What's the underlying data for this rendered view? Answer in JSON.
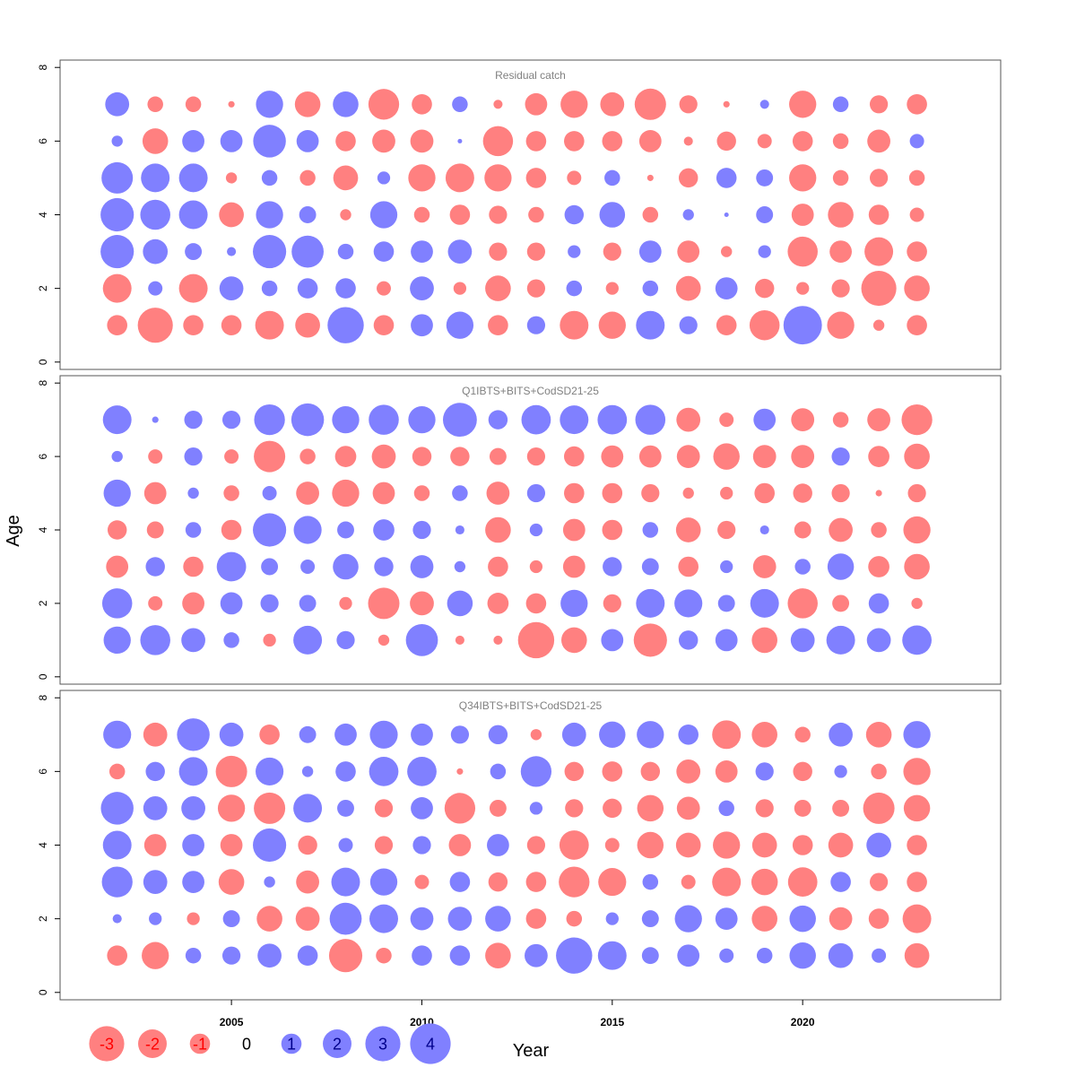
{
  "chart_data": {
    "type": "scatter",
    "subtype": "bubble",
    "xlabel": "Year",
    "ylabel": "Age",
    "x_ticks": [
      2005,
      2010,
      2015,
      2020
    ],
    "x_ticks_labels": [
      "2005",
      "2010",
      "2015",
      "2020"
    ],
    "xlim": [
      2000.5,
      2025.2
    ],
    "y_ticks": [
      0,
      2,
      4,
      6,
      8
    ],
    "y_ticks_labels": [
      "0",
      "2",
      "4",
      "6",
      "8"
    ],
    "ylim": [
      -0.2,
      8.2
    ],
    "years": [
      2002,
      2003,
      2004,
      2005,
      2006,
      2007,
      2008,
      2009,
      2010,
      2011,
      2012,
      2013,
      2014,
      2015,
      2016,
      2017,
      2018,
      2019,
      2020,
      2021,
      2022,
      2023
    ],
    "ages": [
      1,
      2,
      3,
      4,
      5,
      6,
      7
    ],
    "colors": {
      "negative": "#ff8080",
      "positive": "#8080ff"
    },
    "panels": [
      {
        "title": "Residual catch",
        "residuals": [
          [
            -1.0,
            -3.0,
            -1.0,
            -1.0,
            -2.0,
            -1.5,
            3.2,
            -1.0,
            1.2,
            1.8,
            -1.0,
            0.8,
            -2.0,
            -1.8,
            2.0,
            0.8,
            -1.0,
            -2.2,
            3.6,
            -1.8,
            -0.3,
            -1.0
          ],
          [
            -2.0,
            0.5,
            -2.0,
            1.4,
            0.6,
            1.0,
            1.0,
            -0.5,
            1.4,
            -0.4,
            -1.6,
            -0.8,
            0.6,
            -0.4,
            0.6,
            -1.5,
            1.2,
            -0.9,
            -0.4,
            -0.8,
            -3.0,
            -1.6
          ],
          [
            2.7,
            1.5,
            0.7,
            0.2,
            2.7,
            2.5,
            0.6,
            1.0,
            1.2,
            1.4,
            -0.8,
            -0.8,
            0.4,
            -0.8,
            1.2,
            -1.2,
            -0.3,
            0.4,
            -2.2,
            -1.2,
            -2.0,
            -1.0
          ],
          [
            2.7,
            2.2,
            2.0,
            -1.5,
            1.8,
            0.7,
            -0.3,
            1.8,
            -0.6,
            -1.0,
            -0.8,
            -0.6,
            0.9,
            1.6,
            -0.6,
            0.3,
            0.05,
            0.7,
            -1.2,
            -1.6,
            -1.0,
            -0.5
          ],
          [
            2.4,
            2.0,
            2.0,
            -0.3,
            0.6,
            -0.6,
            -1.5,
            0.4,
            -1.8,
            -2.0,
            -1.8,
            -1.0,
            -0.5,
            0.6,
            -0.1,
            -0.9,
            1.0,
            0.7,
            -1.8,
            -0.6,
            -0.8,
            -0.6
          ],
          [
            0.3,
            -1.6,
            1.2,
            1.2,
            2.6,
            1.2,
            -1.0,
            -1.3,
            -1.3,
            0.05,
            -2.2,
            -1.0,
            -1.0,
            -1.0,
            -1.2,
            -0.2,
            -0.9,
            -0.5,
            -1.0,
            -0.6,
            -1.3,
            0.5
          ],
          [
            1.4,
            -0.6,
            -0.6,
            -0.1,
            1.8,
            -1.6,
            1.6,
            -2.3,
            -1.0,
            0.6,
            -0.2,
            -1.2,
            -1.8,
            -1.4,
            -2.4,
            -0.8,
            -0.1,
            0.2,
            -1.8,
            0.6,
            -0.8,
            -1.0
          ]
        ]
      },
      {
        "title": "Q1IBTS+BITS+CodSD21-25",
        "residuals": [
          [
            1.8,
            2.2,
            1.4,
            0.6,
            -0.4,
            2.0,
            0.8,
            -0.3,
            2.5,
            -0.2,
            -0.2,
            -3.2,
            -1.6,
            1.2,
            -2.7,
            0.9,
            1.2,
            -1.6,
            1.4,
            2.0,
            1.4,
            2.1
          ],
          [
            2.2,
            -0.5,
            -1.2,
            1.2,
            0.8,
            0.7,
            -0.4,
            -2.4,
            -1.4,
            1.6,
            -1.1,
            -1.0,
            1.8,
            -0.8,
            2.0,
            1.9,
            0.7,
            2.0,
            -2.2,
            -0.7,
            1.0,
            -0.3
          ],
          [
            -1.2,
            0.9,
            -1.0,
            2.1,
            0.7,
            0.5,
            1.6,
            0.9,
            1.3,
            0.3,
            -1.0,
            -0.4,
            -1.2,
            0.9,
            0.7,
            -1.0,
            0.4,
            -1.3,
            0.6,
            1.7,
            -1.1,
            -1.6
          ],
          [
            -0.9,
            -0.7,
            0.6,
            -1.0,
            2.7,
            1.9,
            0.7,
            1.1,
            0.8,
            0.2,
            -1.6,
            0.4,
            -1.2,
            -1.0,
            0.6,
            -1.5,
            -0.8,
            0.2,
            -0.7,
            -1.4,
            -0.6,
            -1.8
          ],
          [
            1.8,
            -1.2,
            0.3,
            -0.6,
            0.5,
            -1.3,
            -1.8,
            -1.2,
            -0.6,
            0.6,
            -1.3,
            0.8,
            -1.0,
            -1.0,
            -0.8,
            -0.3,
            -0.4,
            -1.0,
            -0.9,
            -0.8,
            -0.1,
            -0.8
          ],
          [
            0.3,
            -0.5,
            0.8,
            -0.5,
            -2.4,
            -0.6,
            -1.1,
            -1.4,
            -0.9,
            -0.9,
            -0.7,
            -0.8,
            -1.0,
            -1.2,
            -1.2,
            -1.3,
            -1.7,
            -1.3,
            -1.3,
            0.8,
            -1.1,
            -1.6
          ],
          [
            2.0,
            0.1,
            0.8,
            0.8,
            2.3,
            2.6,
            1.8,
            2.2,
            1.8,
            2.8,
            0.9,
            2.1,
            2.0,
            2.1,
            2.2,
            -1.4,
            -0.5,
            1.2,
            -1.3,
            -0.6,
            -1.3,
            -2.3
          ]
        ]
      },
      {
        "title": "Q34IBTS+BITS+CodSD21-25",
        "residuals": [
          [
            -1.0,
            -1.8,
            0.6,
            0.8,
            1.4,
            1.0,
            -2.7,
            -0.6,
            1.0,
            1.0,
            -1.6,
            1.3,
            3.2,
            2.0,
            0.7,
            1.2,
            0.5,
            0.6,
            1.7,
            1.5,
            0.5,
            -1.5
          ],
          [
            0.2,
            0.4,
            -0.4,
            0.7,
            -1.6,
            -1.4,
            2.5,
            2.0,
            1.3,
            1.4,
            1.6,
            -1.0,
            -0.6,
            0.4,
            0.7,
            1.8,
            1.2,
            -1.6,
            1.7,
            -1.3,
            -1.0,
            -2.0
          ],
          [
            2.3,
            1.4,
            1.2,
            -1.6,
            0.3,
            -1.3,
            2.0,
            1.8,
            -0.5,
            1.0,
            -0.9,
            -1.0,
            -2.3,
            -1.9,
            0.6,
            -0.5,
            -2.0,
            -1.7,
            -2.1,
            1.0,
            -0.8,
            -1.0
          ],
          [
            2.0,
            -1.2,
            1.2,
            -1.2,
            2.7,
            -0.9,
            0.5,
            -0.8,
            0.8,
            -1.2,
            1.2,
            -0.8,
            -2.1,
            -0.5,
            -1.7,
            -1.5,
            -1.8,
            -1.5,
            -1.0,
            -1.5,
            1.5,
            -1.0
          ],
          [
            2.6,
            1.4,
            1.4,
            -1.8,
            -2.4,
            2.0,
            0.7,
            -0.8,
            1.2,
            -2.3,
            -0.7,
            0.4,
            -0.8,
            -0.9,
            -1.7,
            -1.3,
            0.6,
            -0.8,
            -0.7,
            -0.7,
            -2.4,
            -1.7
          ],
          [
            -0.6,
            0.9,
            2.0,
            -2.4,
            1.9,
            0.3,
            1.0,
            2.1,
            2.1,
            -0.1,
            0.6,
            2.3,
            -0.9,
            -1.0,
            -0.9,
            -1.4,
            -1.2,
            0.8,
            -0.9,
            0.4,
            -0.6,
            -1.8
          ],
          [
            1.9,
            -1.4,
            2.6,
            1.4,
            -1.0,
            0.7,
            1.2,
            1.9,
            1.2,
            0.8,
            0.9,
            -0.3,
            1.4,
            1.7,
            1.8,
            1.0,
            -2.0,
            -1.6,
            -0.6,
            1.4,
            -1.6,
            1.8
          ]
        ]
      }
    ],
    "legend": {
      "values": [
        -3,
        -2,
        -1,
        0,
        1,
        2,
        3,
        4
      ],
      "labels": [
        "-3",
        "-2",
        "-1",
        "0",
        "1",
        "2",
        "3",
        "4"
      ],
      "label_colors": {
        "negative": "#ff0000",
        "zero": "#000000",
        "positive": "#00008b"
      }
    }
  }
}
